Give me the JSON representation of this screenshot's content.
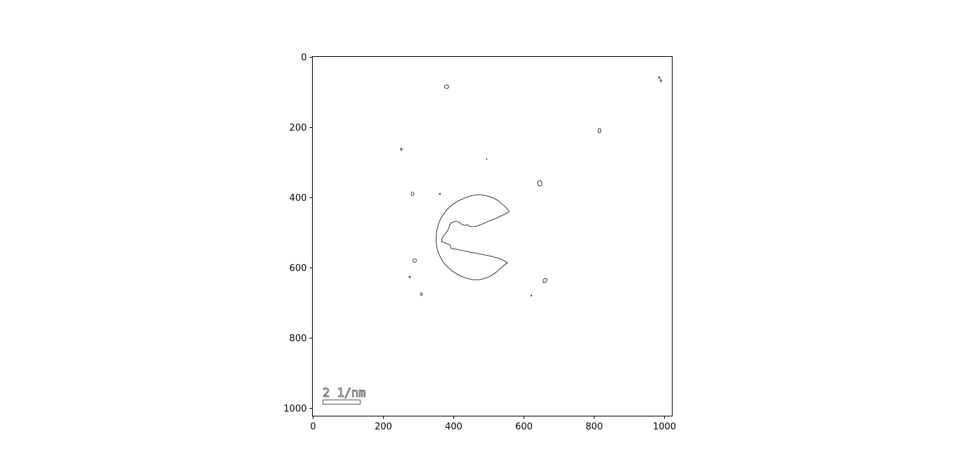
{
  "image": {
    "type": "edge-detected diffraction pattern",
    "x_axis": {
      "ticks": [
        0,
        200,
        400,
        600,
        800,
        1000
      ],
      "range": [
        0,
        1024
      ]
    },
    "y_axis": {
      "ticks": [
        0,
        200,
        400,
        600,
        800,
        1000
      ],
      "range": [
        0,
        1024
      ],
      "inverted": true
    },
    "scale_bar": {
      "label": "2 1/nm"
    },
    "colors": {
      "background": "#ffffff",
      "contour": "#000000",
      "axes": "#000000",
      "scalebar_outline": "#555555"
    }
  }
}
